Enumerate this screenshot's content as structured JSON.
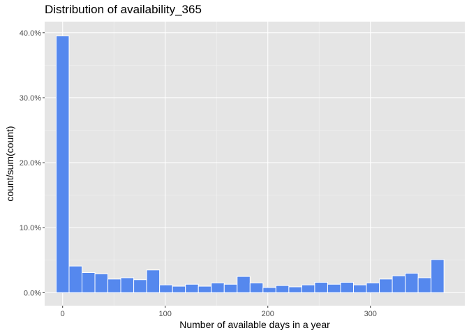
{
  "chart_data": {
    "type": "bar",
    "title": "Distribution of availability_365",
    "xlabel": "Number of available days in a year",
    "ylabel": "count/sum(count)",
    "xlim": [
      -17.5,
      392
    ],
    "ylim": [
      -0.02,
      0.417
    ],
    "x_ticks": [
      0,
      100,
      200,
      300
    ],
    "x_tick_labels": [
      "0",
      "100",
      "200",
      "300"
    ],
    "y_ticks": [
      0,
      0.1,
      0.2,
      0.3,
      0.4
    ],
    "y_tick_labels": [
      "0.0%",
      "10.0%",
      "20.0%",
      "30.0%",
      "40.0%"
    ],
    "bin_width": 12.6,
    "bin_start": -6.3,
    "values": [
      0.395,
      0.041,
      0.031,
      0.029,
      0.021,
      0.023,
      0.02,
      0.035,
      0.012,
      0.01,
      0.013,
      0.01,
      0.015,
      0.013,
      0.025,
      0.015,
      0.008,
      0.011,
      0.009,
      0.012,
      0.016,
      0.013,
      0.016,
      0.012,
      0.015,
      0.021,
      0.026,
      0.03,
      0.023,
      0.051
    ],
    "bar_color": "#5588ee",
    "bar_outline": "#ffffff",
    "panel_background": "#e5e5e5",
    "grid": true,
    "legend": "none"
  }
}
